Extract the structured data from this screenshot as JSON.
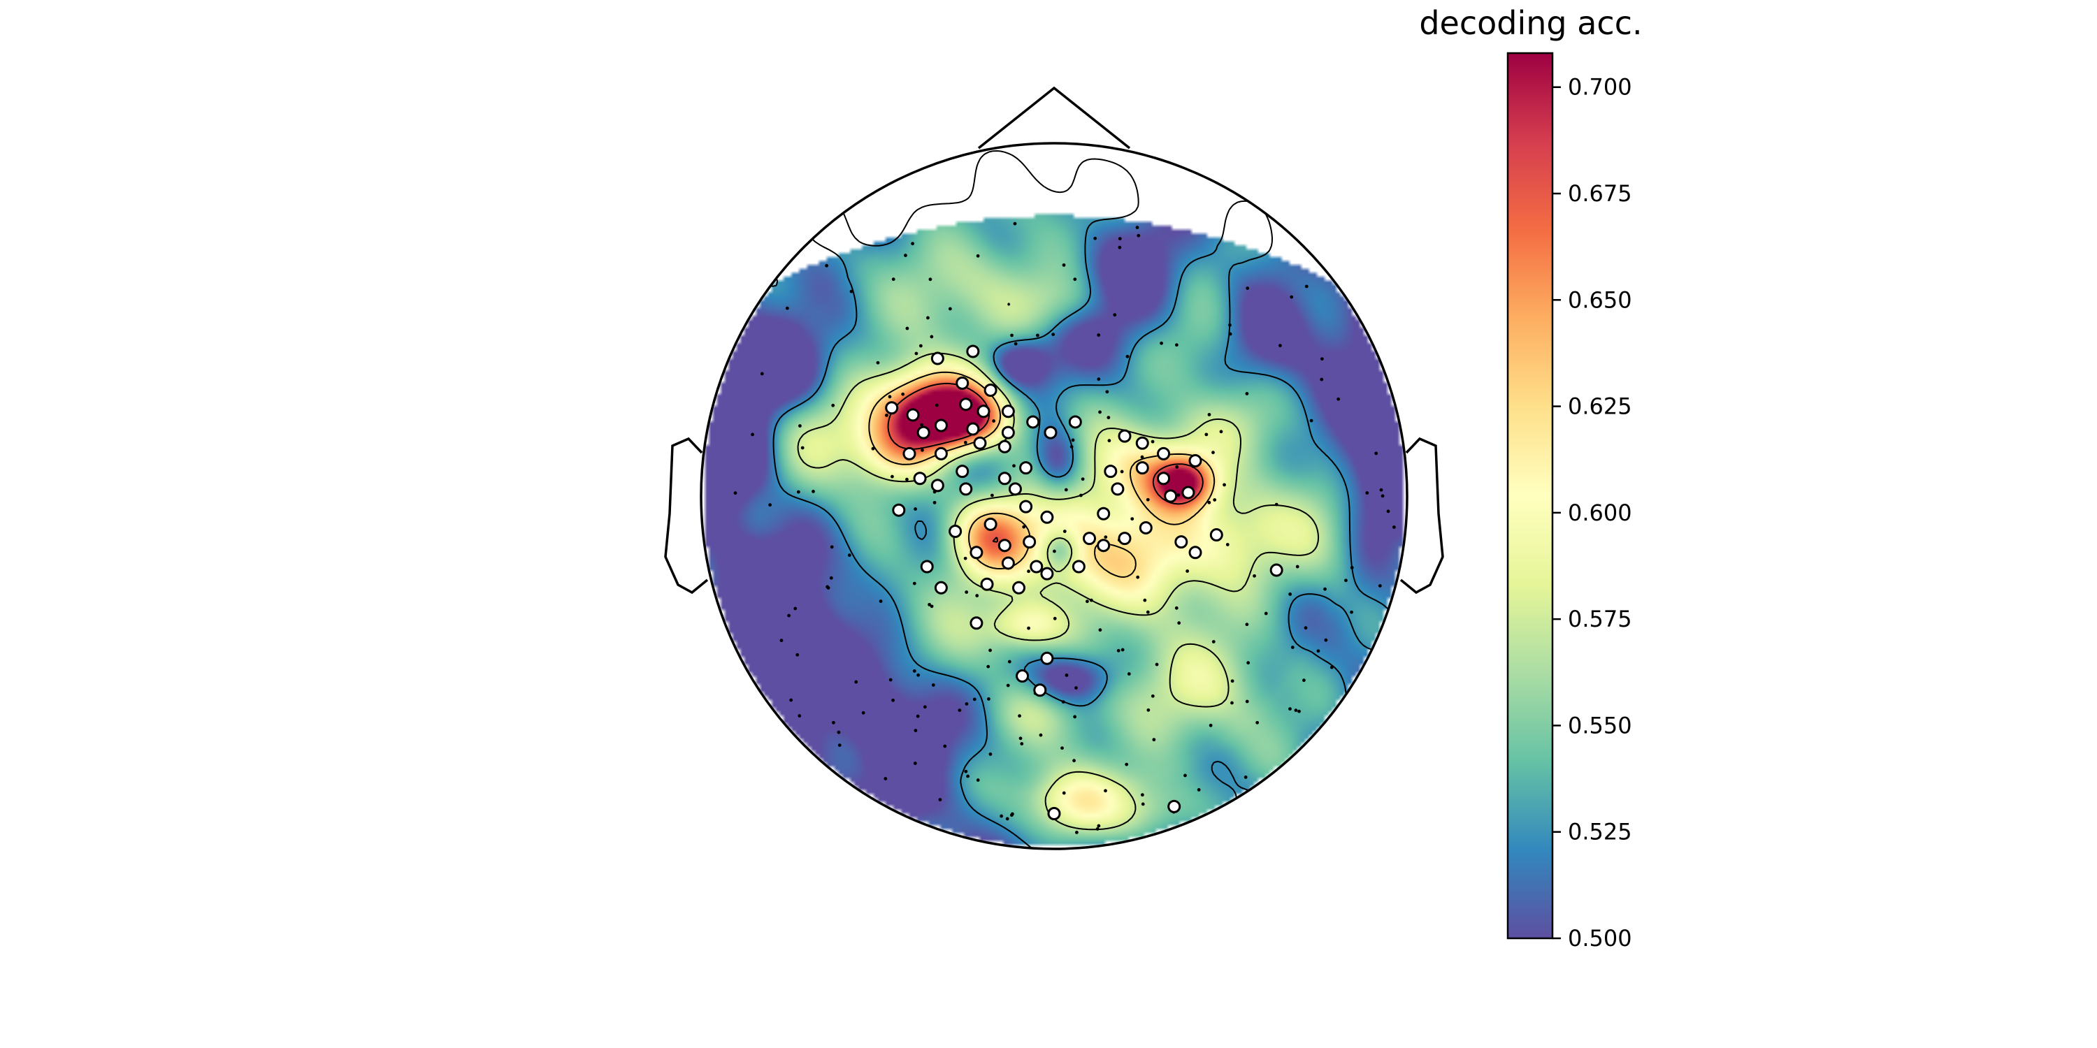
{
  "chart_data": {
    "type": "heatmap",
    "subtype": "topographic-head-map",
    "colorbar": {
      "title": "decoding acc.",
      "range": [
        0.5,
        0.708
      ],
      "ticks": [
        0.5,
        0.525,
        0.55,
        0.575,
        0.6,
        0.625,
        0.65,
        0.675,
        0.7
      ],
      "tick_labels": [
        "0.500",
        "0.525",
        "0.550",
        "0.575",
        "0.600",
        "0.625",
        "0.650",
        "0.675",
        "0.700"
      ],
      "colormap": "Spectral_r",
      "colors": [
        "#5e4fa2",
        "#3288bd",
        "#66c2a5",
        "#abdda4",
        "#e6f598",
        "#ffffbf",
        "#fee08b",
        "#fdae61",
        "#f46d43",
        "#d53e4f",
        "#9e0142"
      ]
    },
    "hotspots": [
      {
        "x": -0.29,
        "y": 0.22,
        "value": 0.705,
        "sx": 0.1,
        "sy": 0.06
      },
      {
        "x": -0.36,
        "y": 0.27,
        "value": 0.64,
        "sx": 0.12,
        "sy": 0.08
      },
      {
        "x": -0.45,
        "y": 0.13,
        "value": 0.615,
        "sx": 0.09,
        "sy": 0.07
      },
      {
        "x": -0.18,
        "y": -0.11,
        "value": 0.64,
        "sx": 0.08,
        "sy": 0.08
      },
      {
        "x": -0.08,
        "y": -0.37,
        "value": 0.6,
        "sx": 0.08,
        "sy": 0.05
      },
      {
        "x": 0.37,
        "y": 0.04,
        "value": 0.665,
        "sx": 0.06,
        "sy": 0.05
      },
      {
        "x": 0.27,
        "y": 0.08,
        "value": 0.62,
        "sx": 0.11,
        "sy": 0.09
      },
      {
        "x": 0.17,
        "y": -0.17,
        "value": 0.61,
        "sx": 0.2,
        "sy": 0.12
      },
      {
        "x": 0.52,
        "y": -0.1,
        "value": 0.58,
        "sx": 0.12,
        "sy": 0.1
      },
      {
        "x": 0.38,
        "y": -0.55,
        "value": 0.57,
        "sx": 0.18,
        "sy": 0.1
      },
      {
        "x": 0.05,
        "y": -0.88,
        "value": 0.6,
        "sx": 0.1,
        "sy": 0.07
      },
      {
        "x": 0.3,
        "y": -0.9,
        "value": 0.58,
        "sx": 0.1,
        "sy": 0.07
      },
      {
        "x": -0.15,
        "y": 0.6,
        "value": 0.565,
        "sx": 0.18,
        "sy": 0.1
      },
      {
        "x": 0.05,
        "y": 0.55,
        "value": 0.565,
        "sx": 0.1,
        "sy": 0.06
      },
      {
        "x": 0.45,
        "y": 0.45,
        "value": 0.56,
        "sx": 0.12,
        "sy": 0.1
      },
      {
        "x": 0.5,
        "y": 0.2,
        "value": 0.56,
        "sx": 0.1,
        "sy": 0.08
      },
      {
        "x": -0.62,
        "y": 0.2,
        "value": 0.56,
        "sx": 0.1,
        "sy": 0.08
      },
      {
        "x": -0.7,
        "y": 0.08,
        "value": 0.55,
        "sx": 0.08,
        "sy": 0.08
      },
      {
        "x": -0.52,
        "y": -0.32,
        "value": 0.55,
        "sx": 0.1,
        "sy": 0.1
      },
      {
        "x": -0.3,
        "y": -0.45,
        "value": 0.55,
        "sx": 0.12,
        "sy": 0.1
      },
      {
        "x": 0.02,
        "y": -0.15,
        "value": 0.56,
        "sx": 0.08,
        "sy": 0.08
      },
      {
        "x": 0.78,
        "y": -0.1,
        "value": 0.56,
        "sx": 0.08,
        "sy": 0.12
      },
      {
        "x": -0.05,
        "y": -0.62,
        "value": 0.55,
        "sx": 0.1,
        "sy": 0.06
      },
      {
        "x": 0.5,
        "y": -0.75,
        "value": 0.545,
        "sx": 0.12,
        "sy": 0.1
      }
    ],
    "cold_spots": [
      {
        "x": 0.01,
        "y": 0.09,
        "sx": 0.05,
        "sy": 0.07
      },
      {
        "x": 0.02,
        "y": -0.15,
        "sx": 0.04,
        "sy": 0.04
      },
      {
        "x": -0.48,
        "y": -0.62,
        "sx": 0.15,
        "sy": 0.18
      },
      {
        "x": -0.78,
        "y": -0.3,
        "sx": 0.15,
        "sy": 0.18
      },
      {
        "x": 0.88,
        "y": 0.12,
        "sx": 0.1,
        "sy": 0.18
      },
      {
        "x": 0.2,
        "y": 0.58,
        "sx": 0.15,
        "sy": 0.15
      },
      {
        "x": 0.6,
        "y": 0.45,
        "sx": 0.1,
        "sy": 0.1
      },
      {
        "x": -0.82,
        "y": 0.35,
        "sx": 0.12,
        "sy": 0.1
      },
      {
        "x": 0.05,
        "y": -0.52,
        "sx": 0.08,
        "sy": 0.05
      },
      {
        "x": -0.1,
        "y": 0.38,
        "sx": 0.06,
        "sy": 0.05
      },
      {
        "x": -0.9,
        "y": 0.1,
        "sx": 0.08,
        "sy": 0.1
      }
    ],
    "significant_sensors": [
      [
        -0.33,
        0.39
      ],
      [
        -0.23,
        0.41
      ],
      [
        -0.18,
        0.3
      ],
      [
        -0.26,
        0.32
      ],
      [
        -0.4,
        0.23
      ],
      [
        -0.46,
        0.25
      ],
      [
        -0.32,
        0.2
      ],
      [
        -0.23,
        0.19
      ],
      [
        -0.13,
        0.18
      ],
      [
        -0.37,
        0.18
      ],
      [
        -0.2,
        0.24
      ],
      [
        -0.25,
        0.26
      ],
      [
        -0.13,
        0.24
      ],
      [
        -0.06,
        0.21
      ],
      [
        -0.01,
        0.18
      ],
      [
        -0.32,
        0.12
      ],
      [
        -0.41,
        0.12
      ],
      [
        -0.21,
        0.15
      ],
      [
        -0.14,
        0.14
      ],
      [
        -0.26,
        0.07
      ],
      [
        -0.08,
        0.08
      ],
      [
        -0.14,
        0.05
      ],
      [
        -0.38,
        0.05
      ],
      [
        -0.33,
        0.03
      ],
      [
        -0.25,
        0.02
      ],
      [
        -0.11,
        0.02
      ],
      [
        -0.08,
        -0.03
      ],
      [
        -0.02,
        -0.06
      ],
      [
        -0.18,
        -0.08
      ],
      [
        -0.44,
        -0.04
      ],
      [
        -0.07,
        -0.13
      ],
      [
        -0.14,
        -0.14
      ],
      [
        -0.22,
        -0.16
      ],
      [
        -0.28,
        -0.1
      ],
      [
        -0.13,
        -0.19
      ],
      [
        -0.05,
        -0.2
      ],
      [
        -0.19,
        -0.25
      ],
      [
        -0.02,
        -0.22
      ],
      [
        -0.1,
        -0.26
      ],
      [
        -0.36,
        -0.2
      ],
      [
        -0.32,
        -0.26
      ],
      [
        -0.22,
        -0.36
      ],
      [
        -0.02,
        -0.46
      ],
      [
        -0.09,
        -0.51
      ],
      [
        -0.04,
        -0.55
      ],
      [
        0.06,
        0.21
      ],
      [
        0.2,
        0.17
      ],
      [
        0.25,
        0.15
      ],
      [
        0.31,
        0.12
      ],
      [
        0.25,
        0.08
      ],
      [
        0.4,
        0.1
      ],
      [
        0.16,
        0.07
      ],
      [
        0.31,
        0.05
      ],
      [
        0.18,
        0.02
      ],
      [
        0.38,
        0.01
      ],
      [
        0.33,
        0.0
      ],
      [
        0.14,
        -0.05
      ],
      [
        0.26,
        -0.09
      ],
      [
        0.36,
        -0.13
      ],
      [
        0.1,
        -0.12
      ],
      [
        0.14,
        -0.14
      ],
      [
        0.2,
        -0.12
      ],
      [
        0.46,
        -0.11
      ],
      [
        0.4,
        -0.16
      ],
      [
        0.07,
        -0.2
      ],
      [
        0.63,
        -0.21
      ],
      [
        0.34,
        -0.88
      ],
      [
        0.0,
        -0.9
      ]
    ],
    "sensor_count": 306
  }
}
